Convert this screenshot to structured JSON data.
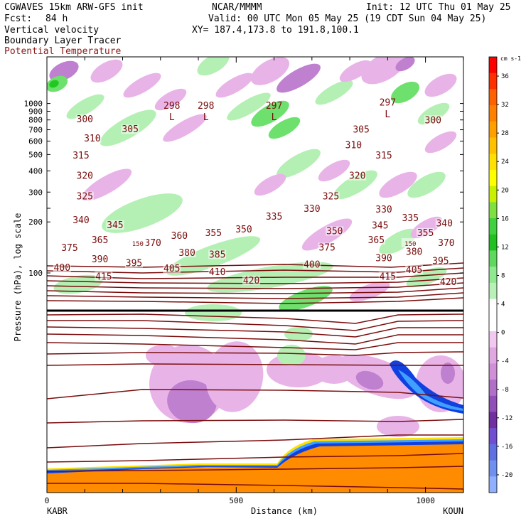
{
  "header": {
    "model": "CGWAVES 15km ARW-GFS init",
    "fcst_label": "Fcst:",
    "fcst_value": "84 h",
    "field1": "Vertical velocity",
    "field2": "Boundary Layer Tracer",
    "field3": "Potential Temperature",
    "org": "NCAR/MMMM",
    "init": "Init: 12 UTC Thu 01 May 25",
    "valid": "Valid: 00 UTC Mon 05 May 25 (19 CDT Sun 04 May 25)",
    "xy": "XY= 187.4,173.8 to 191.8,100.1"
  },
  "colors": {
    "theta": "#7a0c0c",
    "tropopause": "#000000",
    "bl_tracer": "#ff8c00",
    "up_light": "#b4f0b4",
    "up_mid": "#6ee06e",
    "up_strong": "#20c820",
    "down_light": "#e8b4e8",
    "down_mid": "#c080d0",
    "down_strong": "#9040b0",
    "blue_dark": "#1040e0",
    "blue_light": "#40a0ff"
  },
  "chart_data": {
    "type": "heatmap",
    "title": "Vertical velocity / Boundary Layer Tracer / Potential Temperature",
    "xlabel": "Distance (km)",
    "ylabel": "Pressure (hPa), log scale",
    "x_ticks": [
      0,
      500,
      1000
    ],
    "xlim": [
      0,
      1110
    ],
    "x_endpoints": {
      "left": "KABR",
      "right": "KOUN"
    },
    "y_ticks": [
      100,
      200,
      300,
      400,
      500,
      600,
      700,
      800,
      900,
      1000
    ],
    "y_log": true,
    "colorbar": {
      "unit": "cm s-1",
      "ticks": [
        36,
        32,
        28,
        24,
        20,
        16,
        12,
        8,
        4,
        0,
        -4,
        -8,
        -12,
        -16,
        -20
      ],
      "colors": [
        "#ff0000",
        "#ff3000",
        "#ff6000",
        "#ff8000",
        "#ffa000",
        "#ffc000",
        "#ffe000",
        "#ffff00",
        "#c8f000",
        "#80e040",
        "#40d040",
        "#20c020",
        "#60d860",
        "#90e890",
        "#b8f0b8",
        "#ffffff",
        "#ffffff",
        "#f0c8f0",
        "#e0a8e0",
        "#d090d8",
        "#b070c8",
        "#9050b8",
        "#7030a0",
        "#7050d0",
        "#6070e0",
        "#7090f0",
        "#90b0ff"
      ]
    },
    "theta_labels": [
      {
        "text": "415",
        "x": 150,
        "p": 95
      },
      {
        "text": "420",
        "x": 540,
        "p": 90
      },
      {
        "text": "415",
        "x": 900,
        "p": 95
      },
      {
        "text": "420",
        "x": 1060,
        "p": 88
      },
      {
        "text": "410",
        "x": 450,
        "p": 101
      },
      {
        "text": "405",
        "x": 330,
        "p": 106
      },
      {
        "text": "405",
        "x": 970,
        "p": 104
      },
      {
        "text": "400",
        "x": 40,
        "p": 107
      },
      {
        "text": "400",
        "x": 700,
        "p": 112
      },
      {
        "text": "395",
        "x": 230,
        "p": 114
      },
      {
        "text": "395",
        "x": 1040,
        "p": 117
      },
      {
        "text": "390",
        "x": 140,
        "p": 120
      },
      {
        "text": "390",
        "x": 890,
        "p": 122
      },
      {
        "text": "385",
        "x": 450,
        "p": 128
      },
      {
        "text": "380",
        "x": 370,
        "p": 131
      },
      {
        "text": "380",
        "x": 970,
        "p": 133
      },
      {
        "text": "375",
        "x": 60,
        "p": 140
      },
      {
        "text": "375",
        "x": 740,
        "p": 141
      },
      {
        "text": "370",
        "x": 280,
        "p": 150
      },
      {
        "text": "370",
        "x": 1055,
        "p": 150
      },
      {
        "text": "365",
        "x": 140,
        "p": 156
      },
      {
        "text": "365",
        "x": 870,
        "p": 156
      },
      {
        "text": "360",
        "x": 350,
        "p": 165
      },
      {
        "text": "355",
        "x": 440,
        "p": 172
      },
      {
        "text": "355",
        "x": 1000,
        "p": 172
      },
      {
        "text": "350",
        "x": 520,
        "p": 180
      },
      {
        "text": "350",
        "x": 760,
        "p": 176
      },
      {
        "text": "345",
        "x": 180,
        "p": 191
      },
      {
        "text": "345",
        "x": 880,
        "p": 190
      },
      {
        "text": "340",
        "x": 90,
        "p": 204
      },
      {
        "text": "340",
        "x": 1050,
        "p": 196
      },
      {
        "text": "335",
        "x": 600,
        "p": 214
      },
      {
        "text": "335",
        "x": 960,
        "p": 210
      },
      {
        "text": "330",
        "x": 700,
        "p": 238
      },
      {
        "text": "330",
        "x": 890,
        "p": 236
      },
      {
        "text": "325",
        "x": 100,
        "p": 282
      },
      {
        "text": "325",
        "x": 750,
        "p": 282
      },
      {
        "text": "320",
        "x": 100,
        "p": 373
      },
      {
        "text": "320",
        "x": 820,
        "p": 373
      },
      {
        "text": "315",
        "x": 90,
        "p": 492
      },
      {
        "text": "315",
        "x": 890,
        "p": 492
      },
      {
        "text": "310",
        "x": 120,
        "p": 620
      },
      {
        "text": "310",
        "x": 810,
        "p": 566
      },
      {
        "text": "305",
        "x": 220,
        "p": 702
      },
      {
        "text": "305",
        "x": 830,
        "p": 700
      },
      {
        "text": "300",
        "x": 100,
        "p": 805
      },
      {
        "text": "300",
        "x": 1020,
        "p": 795
      }
    ],
    "tropopause_labels": [
      {
        "text": "150",
        "x": 240,
        "p": 150
      },
      {
        "text": "150",
        "x": 960,
        "p": 150
      }
    ],
    "surface_lows": [
      {
        "text": "L",
        "x": 330,
        "p": 830
      },
      {
        "text": "L",
        "x": 420,
        "p": 830
      },
      {
        "text": "L",
        "x": 600,
        "p": 830
      },
      {
        "text": "L",
        "x": 900,
        "p": 860
      }
    ],
    "surface_values": [
      {
        "text": "298",
        "x": 330,
        "p": 970
      },
      {
        "text": "298",
        "x": 420,
        "p": 970
      },
      {
        "text": "297",
        "x": 600,
        "p": 970
      },
      {
        "text": "297",
        "x": 900,
        "p": 1010
      }
    ]
  }
}
